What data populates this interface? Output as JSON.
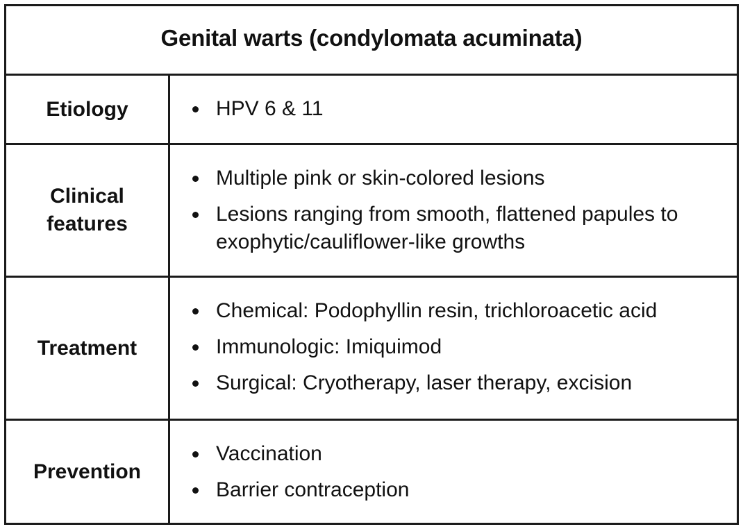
{
  "table": {
    "title": "Genital warts (condylomata acuminata)",
    "rows": [
      {
        "label": "Etiology",
        "items": [
          "HPV 6 & 11"
        ]
      },
      {
        "label": "Clinical\nfeatures",
        "items": [
          "Multiple pink or skin-colored lesions",
          "Lesions ranging from smooth, flattened papules to exophytic/cauliflower-like growths"
        ]
      },
      {
        "label": "Treatment",
        "items": [
          "Chemical: Podophyllin resin, trichloroacetic acid",
          "Immunologic: Imiquimod",
          "Surgical: Cryotherapy, laser therapy, excision"
        ]
      },
      {
        "label": "Prevention",
        "items": [
          "Vaccination",
          "Barrier contraception"
        ]
      }
    ]
  }
}
